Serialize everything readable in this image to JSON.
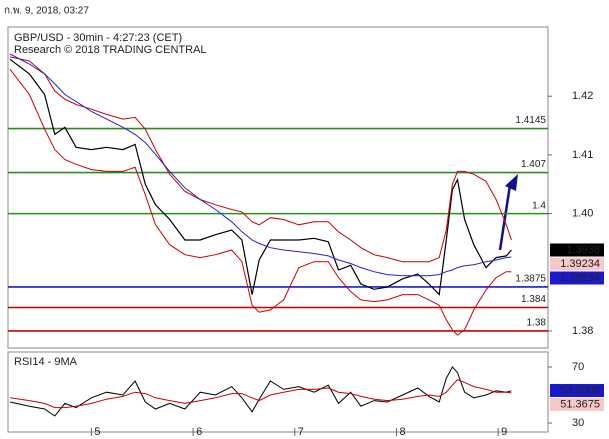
{
  "header": {
    "timestamp": "ก.พ. 9, 2018, 03:27"
  },
  "chart_data": [
    {
      "type": "line",
      "title": "GBP/USD - 30min - 4:27:23 (CET)",
      "subtitle": "Research © 2018 TRADING CENTRAL",
      "xlim": [
        4.18,
        9.49
      ],
      "ylim": [
        1.3771,
        1.4318
      ],
      "yticks": [
        1.38,
        {
          "value": 1.4,
          "label": "1.40"
        },
        1.41,
        1.42
      ],
      "x": [
        4.2,
        4.39,
        4.54,
        4.64,
        4.74,
        4.85,
        5.0,
        5.15,
        5.31,
        5.43,
        5.53,
        5.63,
        5.77,
        5.92,
        6.07,
        6.22,
        6.38,
        6.48,
        6.58,
        6.65,
        6.76,
        6.89,
        7.04,
        7.19,
        7.33,
        7.43,
        7.55,
        7.65,
        7.78,
        7.91,
        8.06,
        8.21,
        8.32,
        8.42,
        8.49,
        8.55,
        8.6,
        8.67,
        8.76,
        8.88,
        8.98,
        9.08,
        9.13
      ],
      "series": [
        {
          "color": "#000000",
          "width": 1.2,
          "values": [
            1.4263,
            1.4238,
            1.4203,
            1.4135,
            1.4147,
            1.4113,
            1.4109,
            1.4113,
            1.4109,
            1.4118,
            1.405,
            1.4015,
            1.399,
            1.3955,
            1.3955,
            1.3964,
            1.3972,
            1.3955,
            1.3862,
            1.3921,
            1.3955,
            1.3955,
            1.3955,
            1.3958,
            1.3952,
            1.3904,
            1.3912,
            1.388,
            1.3871,
            1.3875,
            1.3889,
            1.3897,
            1.388,
            1.3862,
            1.3955,
            1.4041,
            1.4058,
            1.399,
            1.3947,
            1.3908,
            1.3925,
            1.3928,
            1.3938
          ]
        },
        {
          "color": "#cc0000",
          "width": 1,
          "values": [
            1.4267,
            1.426,
            1.4238,
            1.4209,
            1.4195,
            1.4186,
            1.4178,
            1.4169,
            1.4161,
            1.4164,
            1.4144,
            1.4109,
            1.4067,
            1.4038,
            1.4024,
            1.4015,
            1.4007,
            1.4003,
            1.3986,
            1.3981,
            1.3993,
            1.399,
            1.3981,
            1.3986,
            1.3986,
            1.3969,
            1.3955,
            1.3942,
            1.393,
            1.3925,
            1.3918,
            1.3918,
            1.3918,
            1.3925,
            1.3972,
            1.405,
            1.4072,
            1.4072,
            1.4067,
            1.4055,
            1.4024,
            1.3981,
            1.3955
          ]
        },
        {
          "color": "#cc0000",
          "width": 1,
          "values": [
            1.4246,
            1.4203,
            1.4144,
            1.4109,
            1.4092,
            1.4084,
            1.4075,
            1.4072,
            1.4072,
            1.4079,
            1.4032,
            1.3981,
            1.3947,
            1.393,
            1.3925,
            1.393,
            1.3938,
            1.3918,
            1.3844,
            1.3832,
            1.3836,
            1.3853,
            1.3908,
            1.3918,
            1.3918,
            1.3891,
            1.3867,
            1.3853,
            1.385,
            1.3853,
            1.3862,
            1.3862,
            1.3853,
            1.3844,
            1.3819,
            1.3802,
            1.3793,
            1.3802,
            1.3836,
            1.387,
            1.3891,
            1.3901,
            1.3901
          ]
        },
        {
          "color": "#2222cc",
          "width": 1,
          "values": [
            1.4272,
            1.4255,
            1.4238,
            1.4221,
            1.4203,
            1.4191,
            1.4174,
            1.4161,
            1.4147,
            1.4135,
            1.4121,
            1.4101,
            1.4072,
            1.4044,
            1.4024,
            1.4007,
            1.3986,
            1.3969,
            1.3955,
            1.3949,
            1.3942,
            1.3938,
            1.3935,
            1.3932,
            1.3928,
            1.3921,
            1.3915,
            1.3908,
            1.3901,
            1.3896,
            1.3894,
            1.3894,
            1.3894,
            1.3896,
            1.3901,
            1.3904,
            1.3908,
            1.3911,
            1.3913,
            1.3918,
            1.3921,
            1.3925,
            1.3926
          ]
        }
      ],
      "levels": [
        {
          "value": 1.4145,
          "color": "#2e8b22"
        },
        {
          "value": 1.407,
          "color": "#2e8b22"
        },
        {
          "value": 1.4,
          "color": "#2e8b22"
        },
        {
          "value": 1.3875,
          "color": "#1a1acc"
        },
        {
          "value": 1.384,
          "color": "#cc0000"
        },
        {
          "value": 1.38,
          "color": "#cc0000"
        }
      ],
      "price_tags": [
        {
          "value": 1.3938,
          "color": "#ffffff",
          "background": "#000000"
        },
        {
          "value": 1.39234,
          "color": "#cc0000",
          "background": "#f6c8c8"
        },
        {
          "value": 1.39234,
          "color": "#ffffff",
          "background": "#1a1acc"
        }
      ]
    },
    {
      "type": "line",
      "title": "RSI14 - 9MA",
      "xlim": [
        4.18,
        9.49
      ],
      "xticks": [
        5,
        6,
        7,
        8,
        9
      ],
      "ylim": [
        23.6,
        80.7
      ],
      "yticks": [
        30,
        70
      ],
      "x": [
        4.2,
        4.39,
        4.54,
        4.64,
        4.74,
        4.85,
        5.0,
        5.15,
        5.31,
        5.43,
        5.53,
        5.63,
        5.77,
        5.92,
        6.07,
        6.22,
        6.38,
        6.48,
        6.58,
        6.65,
        6.76,
        6.89,
        7.04,
        7.19,
        7.33,
        7.43,
        7.55,
        7.65,
        7.78,
        7.91,
        8.06,
        8.21,
        8.32,
        8.42,
        8.49,
        8.55,
        8.6,
        8.67,
        8.76,
        8.88,
        8.98,
        9.08,
        9.13
      ],
      "series": [
        {
          "color": "#000000",
          "width": 1,
          "values": [
            45,
            42,
            40,
            35,
            44,
            41,
            48,
            52,
            50,
            60,
            45,
            40,
            44,
            40,
            52,
            50,
            56,
            48,
            38,
            47,
            60,
            54,
            56,
            52,
            57,
            44,
            52,
            42,
            46,
            45,
            50,
            55,
            49,
            45,
            62,
            70,
            66,
            52,
            48,
            50,
            53,
            52,
            53
          ]
        },
        {
          "color": "#cc0000",
          "width": 1,
          "values": [
            48,
            46,
            44,
            41,
            41,
            42,
            44,
            47,
            49,
            52,
            51,
            48,
            46,
            44,
            46,
            48,
            51,
            51,
            48,
            46,
            50,
            52,
            54,
            54,
            55,
            52,
            51,
            49,
            47,
            46,
            47,
            49,
            50,
            49,
            52,
            57,
            61,
            59,
            56,
            54,
            52,
            52,
            51.5
          ]
        }
      ],
      "price_tags": [
        {
          "value": 53.2086,
          "color": "#ffffff",
          "background": "#1a1acc"
        },
        {
          "value": 51.3675,
          "color": "#cc0000",
          "background": "#f6c8c8"
        }
      ]
    }
  ]
}
